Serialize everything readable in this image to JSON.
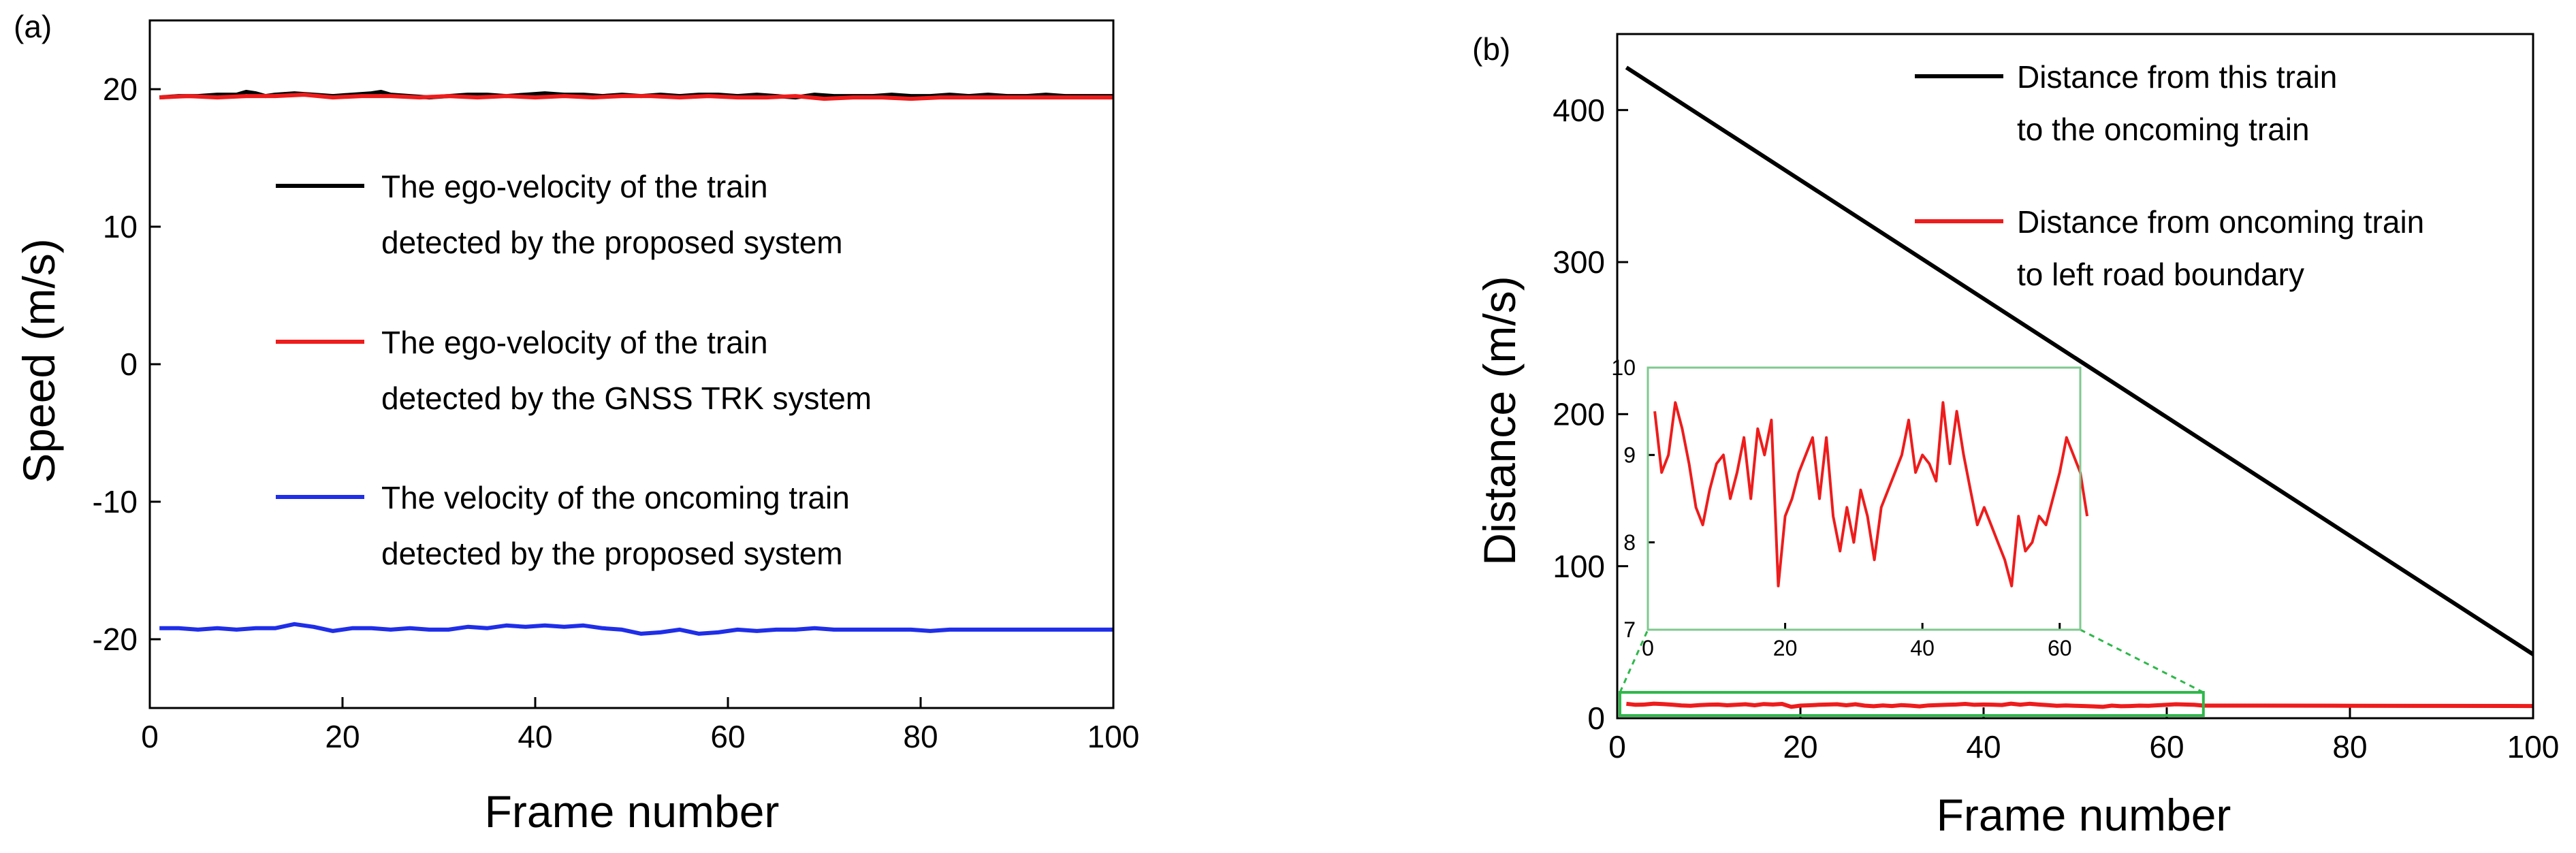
{
  "chart_data": [
    {
      "panel_label": "(a)",
      "type": "line",
      "xlabel": "Frame number",
      "ylabel": "Speed (m/s)",
      "xlim": [
        0,
        100
      ],
      "ylim": [
        -25,
        25
      ],
      "xticks": [
        0,
        20,
        40,
        60,
        80,
        100
      ],
      "yticks": [
        -20,
        -10,
        0,
        10,
        20
      ],
      "legend_position": "center",
      "series": [
        {
          "name": "The ego-velocity of the train detected by the proposed system",
          "legend_lines": [
            "The ego-velocity of the train",
            "detected by the proposed system"
          ],
          "color": "#000000",
          "x": [
            1,
            3,
            5,
            7,
            9,
            10,
            11,
            12,
            13,
            15,
            17,
            19,
            21,
            23,
            24,
            25,
            27,
            29,
            31,
            33,
            35,
            37,
            39,
            41,
            43,
            45,
            47,
            49,
            51,
            53,
            55,
            57,
            59,
            61,
            63,
            65,
            67,
            69,
            71,
            73,
            75,
            77,
            79,
            81,
            83,
            85,
            87,
            89,
            91,
            93,
            95,
            97,
            99,
            100
          ],
          "y": [
            19.4,
            19.5,
            19.5,
            19.6,
            19.6,
            19.8,
            19.7,
            19.5,
            19.6,
            19.7,
            19.6,
            19.5,
            19.6,
            19.7,
            19.8,
            19.6,
            19.5,
            19.4,
            19.5,
            19.6,
            19.6,
            19.5,
            19.6,
            19.7,
            19.6,
            19.6,
            19.5,
            19.6,
            19.5,
            19.6,
            19.5,
            19.6,
            19.6,
            19.5,
            19.6,
            19.5,
            19.4,
            19.6,
            19.5,
            19.5,
            19.5,
            19.6,
            19.5,
            19.5,
            19.6,
            19.5,
            19.6,
            19.5,
            19.5,
            19.6,
            19.5,
            19.5,
            19.5,
            19.5
          ]
        },
        {
          "name": "The ego-velocity of the train detected by the GNSS TRK system",
          "legend_lines": [
            "The ego-velocity of the train",
            "detected by the GNSS TRK system"
          ],
          "color": "#ee1c1c",
          "x": [
            1,
            4,
            7,
            10,
            13,
            16,
            19,
            22,
            25,
            28,
            31,
            34,
            37,
            40,
            43,
            46,
            49,
            52,
            55,
            58,
            61,
            64,
            67,
            70,
            73,
            76,
            79,
            82,
            85,
            88,
            91,
            94,
            97,
            100
          ],
          "y": [
            19.4,
            19.5,
            19.4,
            19.5,
            19.5,
            19.6,
            19.4,
            19.5,
            19.5,
            19.4,
            19.5,
            19.4,
            19.5,
            19.4,
            19.5,
            19.4,
            19.5,
            19.5,
            19.4,
            19.5,
            19.4,
            19.4,
            19.5,
            19.3,
            19.4,
            19.4,
            19.3,
            19.4,
            19.4,
            19.4,
            19.4,
            19.4,
            19.4,
            19.4
          ]
        },
        {
          "name": "The velocity of the oncoming train detected by the proposed system",
          "legend_lines": [
            "The velocity of the oncoming train",
            "detected by the proposed system"
          ],
          "color": "#1f2ee8",
          "x": [
            1,
            3,
            5,
            7,
            9,
            11,
            13,
            15,
            17,
            19,
            21,
            23,
            25,
            27,
            29,
            31,
            33,
            35,
            37,
            39,
            41,
            43,
            45,
            47,
            49,
            51,
            53,
            55,
            57,
            59,
            61,
            63,
            65,
            67,
            69,
            71,
            73,
            75,
            77,
            79,
            81,
            83,
            85,
            87,
            89,
            91,
            93,
            95,
            97,
            100
          ],
          "y": [
            -19.2,
            -19.2,
            -19.3,
            -19.2,
            -19.3,
            -19.2,
            -19.2,
            -18.9,
            -19.1,
            -19.4,
            -19.2,
            -19.2,
            -19.3,
            -19.2,
            -19.3,
            -19.3,
            -19.1,
            -19.2,
            -19.0,
            -19.1,
            -19.0,
            -19.1,
            -19.0,
            -19.2,
            -19.3,
            -19.6,
            -19.5,
            -19.3,
            -19.6,
            -19.5,
            -19.3,
            -19.4,
            -19.3,
            -19.3,
            -19.2,
            -19.3,
            -19.3,
            -19.3,
            -19.3,
            -19.3,
            -19.4,
            -19.3,
            -19.3,
            -19.3,
            -19.3,
            -19.3,
            -19.3,
            -19.3,
            -19.3,
            -19.3
          ]
        }
      ]
    },
    {
      "panel_label": "(b)",
      "type": "line",
      "xlabel": "Frame number",
      "ylabel": "Distance (m/s)",
      "xlim": [
        0,
        100
      ],
      "ylim": [
        0,
        450
      ],
      "xticks": [
        0,
        20,
        40,
        60,
        80,
        100
      ],
      "yticks": [
        0,
        100,
        200,
        300,
        400
      ],
      "legend_position": "top-right",
      "series": [
        {
          "name": "Distance from this train to the oncoming train",
          "legend_lines": [
            "Distance from this train",
            "to the oncoming train"
          ],
          "color": "#000000",
          "x": [
            1,
            100
          ],
          "y": [
            428,
            42
          ]
        },
        {
          "name": "Distance from oncoming train to left road boundary",
          "legend_lines": [
            "Distance from oncoming train",
            "to left road boundary"
          ],
          "color": "#ee1c1c",
          "x": [
            1,
            2,
            3,
            4,
            5,
            6,
            7,
            8,
            9,
            10,
            11,
            12,
            13,
            14,
            15,
            16,
            17,
            18,
            19,
            20,
            21,
            22,
            23,
            24,
            25,
            26,
            27,
            28,
            29,
            30,
            31,
            32,
            33,
            34,
            35,
            36,
            37,
            38,
            39,
            40,
            41,
            42,
            43,
            44,
            45,
            46,
            47,
            48,
            49,
            50,
            51,
            52,
            53,
            54,
            55,
            56,
            57,
            58,
            59,
            60,
            61,
            62,
            63,
            64,
            70,
            80,
            90,
            100
          ],
          "y": [
            9.5,
            8.8,
            9.0,
            9.6,
            9.3,
            8.9,
            8.4,
            8.2,
            8.6,
            8.9,
            9.0,
            8.5,
            8.8,
            9.2,
            8.5,
            9.3,
            9.0,
            9.4,
            7.5,
            8.3,
            8.5,
            8.8,
            9.0,
            9.2,
            8.5,
            9.2,
            8.3,
            7.9,
            8.4,
            8.0,
            8.6,
            8.3,
            7.8,
            8.4,
            8.6,
            8.8,
            9.0,
            9.4,
            8.8,
            9.0,
            8.9,
            8.7,
            9.6,
            8.9,
            9.5,
            9.0,
            8.6,
            8.2,
            8.4,
            8.2,
            8.0,
            7.8,
            7.5,
            8.3,
            7.9,
            8.0,
            8.3,
            8.2,
            8.5,
            8.8,
            9.2,
            9.0,
            8.8,
            8.3,
            8.3,
            8.2,
            8.1,
            8.0
          ]
        }
      ],
      "inset": {
        "xlim": [
          0,
          63
        ],
        "ylim": [
          7,
          10
        ],
        "xticks": [
          0,
          20,
          40,
          60
        ],
        "yticks": [
          7,
          8,
          9,
          10
        ],
        "zoom_xrange": [
          0,
          64
        ],
        "zoom_yrange": [
          0,
          17
        ],
        "border_color": "#7fc98f",
        "zoom_line_color": "#2eb84a"
      }
    }
  ]
}
